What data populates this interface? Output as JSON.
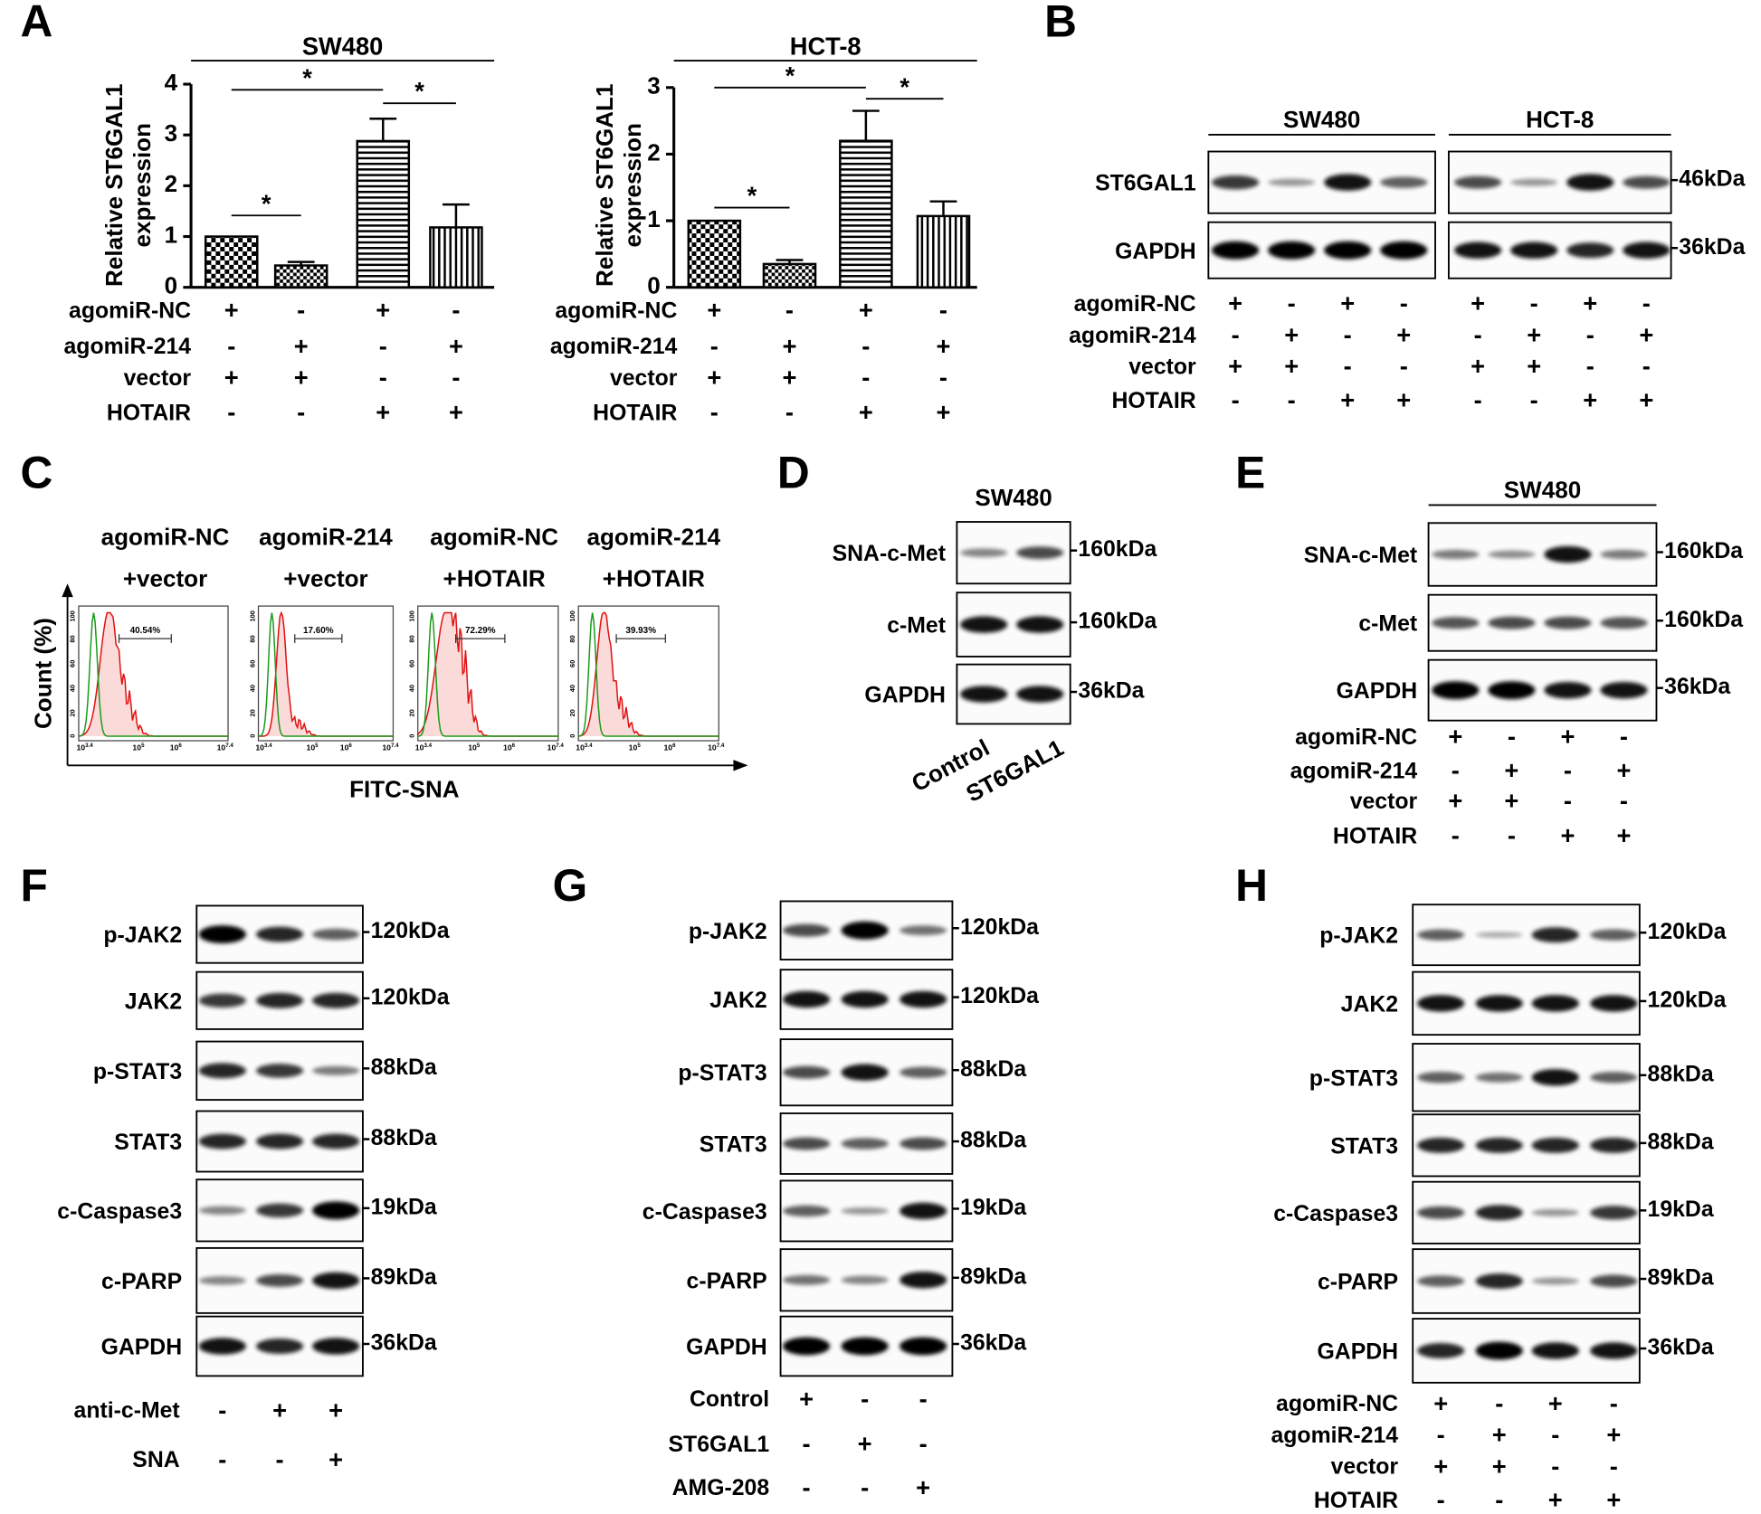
{
  "chart_data": [
    {
      "type": "bar",
      "title": "SW480",
      "y_label": [
        "Relative ST6GAL1",
        "expression"
      ],
      "ylim": [
        0,
        4
      ],
      "yticks": [
        0,
        1,
        2,
        3,
        4
      ],
      "values": [
        1,
        0.43,
        2.88,
        1.18
      ],
      "errors": [
        0,
        0.07,
        0.44,
        0.45
      ],
      "significance": [
        "*",
        "*",
        "*"
      ],
      "conditions": [
        {
          "name": "agomiR-NC",
          "signs": [
            "+",
            "-",
            "+",
            "-"
          ]
        },
        {
          "name": "agomiR-214",
          "signs": [
            "-",
            "+",
            "-",
            "+"
          ]
        },
        {
          "name": "vector",
          "signs": [
            "+",
            "+",
            "-",
            "-"
          ]
        },
        {
          "name": "HOTAIR",
          "signs": [
            "-",
            "-",
            "+",
            "+"
          ]
        }
      ]
    },
    {
      "type": "bar",
      "title": "HCT-8",
      "y_label": [
        "Relative ST6GAL1",
        "expression"
      ],
      "ylim": [
        0,
        3
      ],
      "yticks": [
        0,
        1,
        2,
        3
      ],
      "values": [
        1,
        0.35,
        2.2,
        1.07
      ],
      "errors": [
        0,
        0.06,
        0.45,
        0.22
      ],
      "significance": [
        "*",
        "*",
        "*"
      ],
      "conditions": [
        {
          "name": "agomiR-NC",
          "signs": [
            "+",
            "-",
            "+",
            "-"
          ]
        },
        {
          "name": "agomiR-214",
          "signs": [
            "-",
            "+",
            "-",
            "+"
          ]
        },
        {
          "name": "vector",
          "signs": [
            "+",
            "+",
            "-",
            "-"
          ]
        },
        {
          "name": "HOTAIR",
          "signs": [
            "-",
            "-",
            "+",
            "+"
          ]
        }
      ]
    }
  ],
  "panels": {
    "A": {
      "label": "A"
    },
    "B": {
      "label": "B",
      "groups": [
        "SW480",
        "HCT-8"
      ],
      "rows": [
        {
          "name": "ST6GAL1",
          "size": "46kDa"
        },
        {
          "name": "GAPDH",
          "size": "36kDa"
        }
      ],
      "conditions": [
        {
          "name": "agomiR-NC",
          "signs": [
            "+",
            "-",
            "+",
            "-",
            "+",
            "-",
            "+",
            "-"
          ]
        },
        {
          "name": "agomiR-214",
          "signs": [
            "-",
            "+",
            "-",
            "+",
            "-",
            "+",
            "-",
            "+"
          ]
        },
        {
          "name": "vector",
          "signs": [
            "+",
            "+",
            "-",
            "-",
            "+",
            "+",
            "-",
            "-"
          ]
        },
        {
          "name": "HOTAIR",
          "signs": [
            "-",
            "-",
            "+",
            "+",
            "-",
            "-",
            "+",
            "+"
          ]
        }
      ]
    },
    "C": {
      "label": "C",
      "columns": [
        {
          "lines": [
            "agomiR-NC",
            "+vector"
          ],
          "percent": "40.54%"
        },
        {
          "lines": [
            "agomiR-214",
            "+vector"
          ],
          "percent": "17.60%"
        },
        {
          "lines": [
            "agomiR-NC",
            "+HOTAIR"
          ],
          "percent": "72.29%"
        },
        {
          "lines": [
            "agomiR-214",
            "+HOTAIR"
          ],
          "percent": "39.93%"
        }
      ],
      "y_label": "Count (%)",
      "x_label": "FITC-SNA",
      "yticks": [
        "100",
        "80",
        "60",
        "40",
        "20",
        "0"
      ],
      "xticks": [
        {
          "base": "10",
          "exp": "3.4"
        },
        {
          "base": "10",
          "exp": "5"
        },
        {
          "base": "10",
          "exp": "6"
        },
        {
          "base": "10",
          "exp": "7.4"
        }
      ]
    },
    "D": {
      "label": "D",
      "groups": [
        "SW480"
      ],
      "rows": [
        {
          "name": "SNA-c-Met",
          "size": "160kDa"
        },
        {
          "name": "c-Met",
          "size": "160kDa"
        },
        {
          "name": "GAPDH",
          "size": "36kDa"
        }
      ],
      "lanes": [
        "Control",
        "ST6GAL1"
      ]
    },
    "E": {
      "label": "E",
      "groups": [
        "SW480"
      ],
      "rows": [
        {
          "name": "SNA-c-Met",
          "size": "160kDa"
        },
        {
          "name": "c-Met",
          "size": "160kDa"
        },
        {
          "name": "GAPDH",
          "size": "36kDa"
        }
      ],
      "conditions": [
        {
          "name": "agomiR-NC",
          "signs": [
            "+",
            "-",
            "+",
            "-"
          ]
        },
        {
          "name": "agomiR-214",
          "signs": [
            "-",
            "+",
            "-",
            "+"
          ]
        },
        {
          "name": "vector",
          "signs": [
            "+",
            "+",
            "-",
            "-"
          ]
        },
        {
          "name": "HOTAIR",
          "signs": [
            "-",
            "-",
            "+",
            "+"
          ]
        }
      ]
    },
    "F": {
      "label": "F",
      "rows": [
        {
          "name": "p-JAK2",
          "size": "120kDa"
        },
        {
          "name": "JAK2",
          "size": "120kDa"
        },
        {
          "name": "p-STAT3",
          "size": "88kDa"
        },
        {
          "name": "STAT3",
          "size": "88kDa"
        },
        {
          "name": "c-Caspase3",
          "size": "19kDa"
        },
        {
          "name": "c-PARP",
          "size": "89kDa"
        },
        {
          "name": "GAPDH",
          "size": "36kDa"
        }
      ],
      "conditions": [
        {
          "name": "anti-c-Met",
          "signs": [
            "-",
            "+",
            "+"
          ]
        },
        {
          "name": "SNA",
          "signs": [
            "-",
            "-",
            "+"
          ]
        }
      ]
    },
    "G": {
      "label": "G",
      "rows": [
        {
          "name": "p-JAK2",
          "size": "120kDa"
        },
        {
          "name": "JAK2",
          "size": "120kDa"
        },
        {
          "name": "p-STAT3",
          "size": "88kDa"
        },
        {
          "name": "STAT3",
          "size": "88kDa"
        },
        {
          "name": "c-Caspase3",
          "size": "19kDa"
        },
        {
          "name": "c-PARP",
          "size": "89kDa"
        },
        {
          "name": "GAPDH",
          "size": "36kDa"
        }
      ],
      "conditions": [
        {
          "name": "Control",
          "signs": [
            "+",
            "-",
            "-"
          ]
        },
        {
          "name": "ST6GAL1",
          "signs": [
            "-",
            "+",
            "-"
          ]
        },
        {
          "name": "AMG-208",
          "signs": [
            "-",
            "-",
            "+"
          ]
        }
      ]
    },
    "H": {
      "label": "H",
      "rows": [
        {
          "name": "p-JAK2",
          "size": "120kDa"
        },
        {
          "name": "JAK2",
          "size": "120kDa"
        },
        {
          "name": "p-STAT3",
          "size": "88kDa"
        },
        {
          "name": "STAT3",
          "size": "88kDa"
        },
        {
          "name": "c-Caspase3",
          "size": "19kDa"
        },
        {
          "name": "c-PARP",
          "size": "89kDa"
        },
        {
          "name": "GAPDH",
          "size": "36kDa"
        }
      ],
      "conditions": [
        {
          "name": "agomiR-NC",
          "signs": [
            "+",
            "-",
            "+",
            "-"
          ]
        },
        {
          "name": "agomiR-214",
          "signs": [
            "-",
            "+",
            "-",
            "+"
          ]
        },
        {
          "name": "vector",
          "signs": [
            "+",
            "+",
            "-",
            "-"
          ]
        },
        {
          "name": "HOTAIR",
          "signs": [
            "-",
            "-",
            "+",
            "+"
          ]
        }
      ]
    }
  }
}
